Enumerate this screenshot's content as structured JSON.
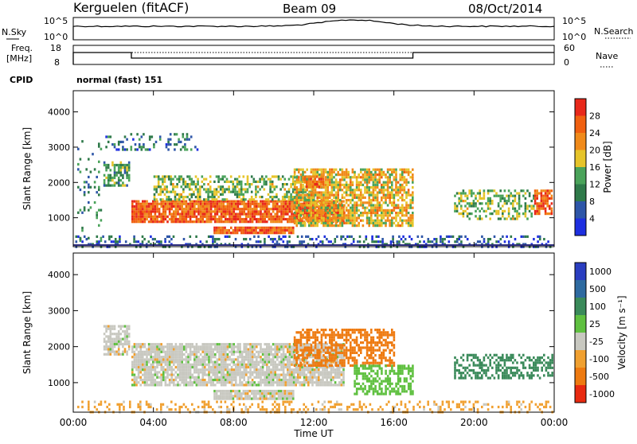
{
  "header": {
    "station": "Kerguelen (fitACF)",
    "beam": "Beam 09",
    "date": "08/Oct/2014"
  },
  "status": {
    "nsky_label": "N.Sky",
    "nsearch_label": "N.Search",
    "noise_hi": "10^5",
    "noise_lo": "10^0",
    "freq_label_1": "Freq.",
    "freq_label_2": "[MHz]",
    "freq_hi": "18",
    "freq_lo": "8",
    "nave_label": "Nave",
    "nave_hi": "60",
    "nave_lo": "0",
    "cpid_label": "CPID",
    "cpid_value": "normal (fast) 151"
  },
  "power_panel": {
    "ylabel": "Slant Range [km]",
    "yticks": [
      "1000",
      "2000",
      "3000",
      "4000"
    ],
    "cbar_label": "Power [dB]",
    "cbar_ticks": [
      "4",
      "8",
      "12",
      "16",
      "20",
      "24",
      "28"
    ]
  },
  "velocity_panel": {
    "ylabel": "Slant Range [km]",
    "yticks": [
      "1000",
      "2000",
      "3000",
      "4000"
    ],
    "cbar_label": "Velocity [m s⁻¹]",
    "cbar_ticks": [
      "1000",
      "500",
      "100",
      "25",
      "-25",
      "-100",
      "-500",
      "-1000"
    ]
  },
  "xaxis": {
    "label": "Time UT",
    "ticks": [
      "00:00",
      "04:00",
      "08:00",
      "12:00",
      "16:00",
      "20:00",
      "00:00"
    ]
  },
  "colors": {
    "power_scale": [
      "#1e2fe0",
      "#2e56a8",
      "#2f7a4a",
      "#4aa35a",
      "#e6c42a",
      "#f08a1a",
      "#f06010",
      "#e8281a"
    ],
    "velocity_scale": [
      "#2a3ec0",
      "#2e6aa0",
      "#3a8a5a",
      "#5fc040",
      "#c8c8c0",
      "#f0a030",
      "#ee7a10",
      "#e82a10"
    ],
    "ground_scatter": "#c8c8c0"
  },
  "chart_data": [
    {
      "type": "heatmap",
      "title": "Power",
      "xlabel": "Time UT",
      "ylabel": "Slant Range [km]",
      "xlim": [
        0,
        24
      ],
      "ylim": [
        180,
        4600
      ],
      "colorbar": {
        "label": "Power [dB]",
        "range": [
          0,
          30
        ],
        "ticks": [
          4,
          8,
          12,
          16,
          20,
          24,
          28
        ]
      },
      "regions": [
        {
          "t0": 0.2,
          "t1": 1.4,
          "r0": 200,
          "r1": 3200,
          "level": 10,
          "density": 0.12
        },
        {
          "t0": 1.5,
          "t1": 2.8,
          "r0": 1900,
          "r1": 2600,
          "level": 12,
          "density": 0.55
        },
        {
          "t0": 1.6,
          "t1": 6.2,
          "r0": 2900,
          "r1": 3400,
          "level": 8,
          "density": 0.25
        },
        {
          "t0": 2.9,
          "t1": 13.5,
          "r0": 900,
          "r1": 1500,
          "level": 24,
          "density": 0.9
        },
        {
          "t0": 4.0,
          "t1": 12.0,
          "r0": 1500,
          "r1": 2200,
          "level": 14,
          "density": 0.5
        },
        {
          "t0": 7.0,
          "t1": 11.0,
          "r0": 550,
          "r1": 750,
          "level": 25,
          "density": 0.9
        },
        {
          "t0": 11.0,
          "t1": 16.9,
          "r0": 800,
          "r1": 2400,
          "level": 18,
          "density": 0.7
        },
        {
          "t0": 11.5,
          "t1": 12.5,
          "r0": 1900,
          "r1": 2200,
          "level": 24,
          "density": 0.7
        },
        {
          "t0": 19.0,
          "t1": 23.0,
          "r0": 1000,
          "r1": 1800,
          "level": 14,
          "density": 0.45
        },
        {
          "t0": 23.0,
          "t1": 23.9,
          "r0": 1100,
          "r1": 1800,
          "level": 24,
          "density": 0.75
        },
        {
          "t0": 0.1,
          "t1": 23.9,
          "r0": 200,
          "r1": 500,
          "level": 6,
          "density": 0.3
        }
      ]
    },
    {
      "type": "heatmap",
      "title": "Velocity",
      "xlabel": "Time UT",
      "ylabel": "Slant Range [km]",
      "xlim": [
        0,
        24
      ],
      "ylim": [
        180,
        4600
      ],
      "colorbar": {
        "label": "Velocity [m s⁻¹]",
        "ticks": [
          1000,
          500,
          100,
          25,
          -25,
          -100,
          -500,
          -1000
        ]
      },
      "regions": [
        {
          "t0": 1.5,
          "t1": 2.8,
          "r0": 1800,
          "r1": 2600,
          "level": 0,
          "density": 0.75
        },
        {
          "t0": 2.9,
          "t1": 13.5,
          "r0": 900,
          "r1": 2100,
          "level": 0,
          "density": 0.85
        },
        {
          "t0": 7.0,
          "t1": 11.0,
          "r0": 550,
          "r1": 800,
          "level": 0,
          "density": 0.9
        },
        {
          "t0": 11.0,
          "t1": 16.0,
          "r0": 1500,
          "r1": 2500,
          "level": -150,
          "density": 0.6
        },
        {
          "t0": 14.0,
          "t1": 16.9,
          "r0": 700,
          "r1": 1500,
          "level": 60,
          "density": 0.55
        },
        {
          "t0": 19.0,
          "t1": 23.9,
          "r0": 1100,
          "r1": 1800,
          "level": 250,
          "density": 0.5
        },
        {
          "t0": 0.2,
          "t1": 23.9,
          "r0": 200,
          "r1": 500,
          "level": -50,
          "density": 0.25
        }
      ]
    }
  ]
}
